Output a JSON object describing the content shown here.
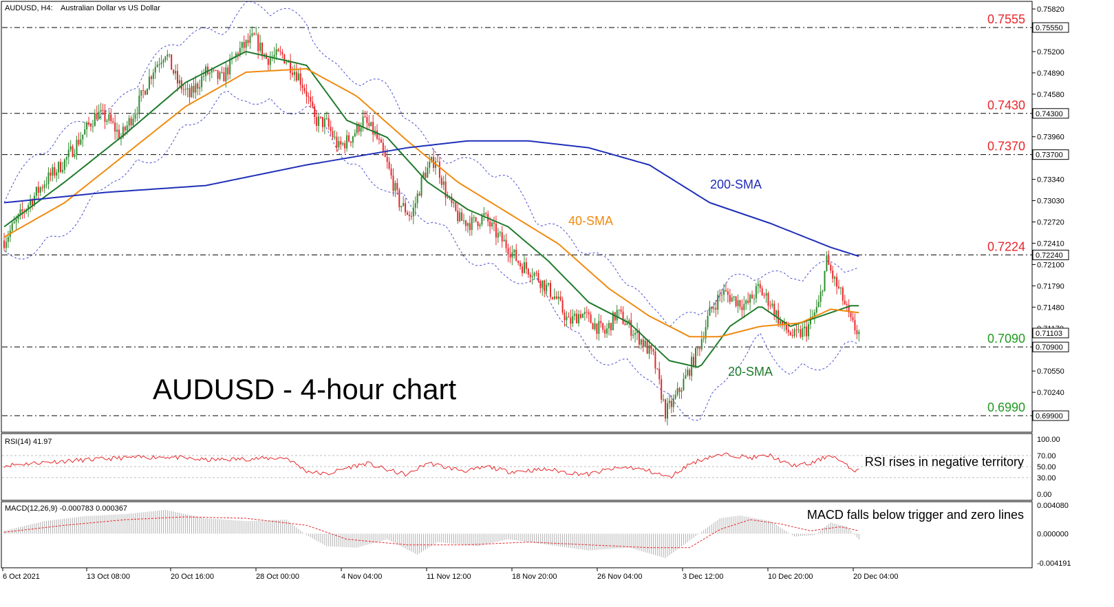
{
  "window": {
    "header_symbol": "AUDUSD, H4:",
    "header_desc": "Australian Dollar vs US Dollar",
    "big_title": "AUDUSD - 4-hour chart"
  },
  "colors": {
    "bull": "#2e8b2e",
    "bear": "#e8262a",
    "sma20": "#1e7a2a",
    "sma40": "#f08a10",
    "sma200": "#1f2fb8",
    "bands": "#4a4fd0",
    "level_red": "#e8262a",
    "level_green": "#1e9a1e",
    "rsi": "#e8262a",
    "macd_hist": "#b0b0b0",
    "macd_signal": "#e8262a"
  },
  "chart_data": [
    {
      "type": "candlestick",
      "title": "AUDUSD, H4:  Australian Dollar vs US Dollar",
      "ylim": [
        0.696,
        0.7582
      ],
      "y_ticks": [
        "0.75820",
        "0.75200",
        "0.74890",
        "0.74580",
        "0.73960",
        "0.73340",
        "0.73030",
        "0.72720",
        "0.72410",
        "0.72100",
        "0.71790",
        "0.71480",
        "0.71170",
        "0.70550",
        "0.70240"
      ],
      "x_labels": [
        "6 Oct 2021",
        "13 Oct 08:00",
        "20 Oct 16:00",
        "28 Oct 00:00",
        "4 Nov 04:00",
        "11 Nov 12:00",
        "18 Nov 20:00",
        "26 Nov 04:00",
        "3 Dec 12:00",
        "10 Dec 20:00",
        "20 Dec 04:00"
      ],
      "levels": [
        {
          "value": 0.7555,
          "label": "0.7555",
          "tag": "0.75550",
          "color": "red"
        },
        {
          "value": 0.743,
          "label": "0.7430",
          "tag": "0.74300",
          "color": "red"
        },
        {
          "value": 0.737,
          "label": "0.7370",
          "tag": "0.73700",
          "color": "red"
        },
        {
          "value": 0.7224,
          "label": "0.7224",
          "tag": "0.72240",
          "color": "red"
        },
        {
          "value": 0.709,
          "label": "0.7090",
          "tag": "0.70900",
          "color": "green"
        },
        {
          "value": 0.699,
          "label": "0.6990",
          "tag": "0.69900",
          "color": "green"
        }
      ],
      "last_price_tag": "0.71103",
      "price_path_keypoints": [
        [
          0,
          0.7245
        ],
        [
          10,
          0.729
        ],
        [
          20,
          0.733
        ],
        [
          30,
          0.736
        ],
        [
          38,
          0.7395
        ],
        [
          46,
          0.743
        ],
        [
          52,
          0.742
        ],
        [
          58,
          0.7395
        ],
        [
          66,
          0.744
        ],
        [
          74,
          0.7495
        ],
        [
          80,
          0.752
        ],
        [
          86,
          0.7475
        ],
        [
          92,
          0.7455
        ],
        [
          100,
          0.749
        ],
        [
          108,
          0.748
        ],
        [
          116,
          0.752
        ],
        [
          124,
          0.754
        ],
        [
          130,
          0.751
        ],
        [
          138,
          0.7515
        ],
        [
          146,
          0.7485
        ],
        [
          150,
          0.746
        ],
        [
          154,
          0.742
        ],
        [
          160,
          0.7415
        ],
        [
          166,
          0.738
        ],
        [
          172,
          0.7395
        ],
        [
          178,
          0.742
        ],
        [
          184,
          0.74
        ],
        [
          190,
          0.7355
        ],
        [
          196,
          0.73
        ],
        [
          202,
          0.728
        ],
        [
          208,
          0.734
        ],
        [
          214,
          0.7365
        ],
        [
          220,
          0.7305
        ],
        [
          226,
          0.7275
        ],
        [
          232,
          0.727
        ],
        [
          238,
          0.728
        ],
        [
          244,
          0.7255
        ],
        [
          250,
          0.7235
        ],
        [
          256,
          0.721
        ],
        [
          262,
          0.72
        ],
        [
          268,
          0.718
        ],
        [
          274,
          0.716
        ],
        [
          280,
          0.7125
        ],
        [
          286,
          0.714
        ],
        [
          292,
          0.7125
        ],
        [
          298,
          0.711
        ],
        [
          304,
          0.714
        ],
        [
          310,
          0.712
        ],
        [
          316,
          0.71
        ],
        [
          322,
          0.7075
        ],
        [
          328,
          0.6995
        ],
        [
          332,
          0.701
        ],
        [
          338,
          0.7045
        ],
        [
          344,
          0.7085
        ],
        [
          350,
          0.714
        ],
        [
          356,
          0.717
        ],
        [
          362,
          0.716
        ],
        [
          368,
          0.715
        ],
        [
          374,
          0.7175
        ],
        [
          380,
          0.7155
        ],
        [
          386,
          0.712
        ],
        [
          392,
          0.7105
        ],
        [
          398,
          0.7115
        ],
        [
          404,
          0.715
        ],
        [
          408,
          0.7215
        ],
        [
          412,
          0.7185
        ],
        [
          416,
          0.716
        ],
        [
          420,
          0.7125
        ],
        [
          424,
          0.711
        ]
      ],
      "series": [
        {
          "name": "20-SMA",
          "values": [
            [
              0,
              0.7265
            ],
            [
              30,
              0.733
            ],
            [
              60,
              0.74
            ],
            [
              90,
              0.7475
            ],
            [
              120,
              0.752
            ],
            [
              150,
              0.75
            ],
            [
              170,
              0.742
            ],
            [
              190,
              0.7395
            ],
            [
              210,
              0.733
            ],
            [
              230,
              0.729
            ],
            [
              250,
              0.7265
            ],
            [
              270,
              0.7215
            ],
            [
              290,
              0.7155
            ],
            [
              310,
              0.7125
            ],
            [
              330,
              0.707
            ],
            [
              345,
              0.706
            ],
            [
              360,
              0.712
            ],
            [
              375,
              0.715
            ],
            [
              390,
              0.712
            ],
            [
              405,
              0.7135
            ],
            [
              420,
              0.715
            ],
            [
              424,
              0.715
            ]
          ]
        },
        {
          "name": "40-SMA",
          "values": [
            [
              0,
              0.725
            ],
            [
              30,
              0.73
            ],
            [
              60,
              0.737
            ],
            [
              90,
              0.744
            ],
            [
              120,
              0.749
            ],
            [
              150,
              0.7495
            ],
            [
              175,
              0.7455
            ],
            [
              200,
              0.739
            ],
            [
              225,
              0.733
            ],
            [
              250,
              0.7285
            ],
            [
              275,
              0.724
            ],
            [
              300,
              0.7175
            ],
            [
              320,
              0.7135
            ],
            [
              340,
              0.7105
            ],
            [
              355,
              0.7105
            ],
            [
              375,
              0.712
            ],
            [
              395,
              0.7125
            ],
            [
              410,
              0.7145
            ],
            [
              424,
              0.714
            ]
          ]
        },
        {
          "name": "200-SMA",
          "values": [
            [
              0,
              0.73
            ],
            [
              50,
              0.7315
            ],
            [
              100,
              0.7325
            ],
            [
              150,
              0.7355
            ],
            [
              200,
              0.738
            ],
            [
              230,
              0.739
            ],
            [
              260,
              0.739
            ],
            [
              290,
              0.738
            ],
            [
              320,
              0.7355
            ],
            [
              350,
              0.73
            ],
            [
              380,
              0.727
            ],
            [
              410,
              0.7235
            ],
            [
              424,
              0.7222
            ]
          ]
        }
      ]
    },
    {
      "type": "line",
      "title": "RSI(14) 41.97",
      "ylim": [
        0,
        100
      ],
      "y_ticks": [
        "100.00",
        "70.00",
        "50.00",
        "30.00",
        "0.00"
      ],
      "levels": [
        70,
        50,
        30
      ],
      "values_keypoints": [
        [
          0,
          52
        ],
        [
          20,
          58
        ],
        [
          40,
          62
        ],
        [
          60,
          66
        ],
        [
          80,
          68
        ],
        [
          100,
          62
        ],
        [
          120,
          64
        ],
        [
          140,
          66
        ],
        [
          150,
          42
        ],
        [
          160,
          36
        ],
        [
          170,
          48
        ],
        [
          180,
          56
        ],
        [
          190,
          44
        ],
        [
          200,
          35
        ],
        [
          210,
          57
        ],
        [
          220,
          48
        ],
        [
          230,
          42
        ],
        [
          240,
          50
        ],
        [
          250,
          41
        ],
        [
          260,
          43
        ],
        [
          270,
          45
        ],
        [
          280,
          39
        ],
        [
          290,
          36
        ],
        [
          300,
          45
        ],
        [
          310,
          49
        ],
        [
          320,
          42
        ],
        [
          330,
          30
        ],
        [
          340,
          55
        ],
        [
          350,
          68
        ],
        [
          360,
          72
        ],
        [
          370,
          66
        ],
        [
          380,
          70
        ],
        [
          390,
          52
        ],
        [
          400,
          55
        ],
        [
          410,
          72
        ],
        [
          420,
          46
        ],
        [
          424,
          42
        ]
      ]
    },
    {
      "type": "bar",
      "title": "MACD(12,26,9) -0.000783 0.000367",
      "ylim": [
        -0.004191,
        0.00408
      ],
      "y_ticks": [
        "0.004080",
        "0.000000",
        "-0.004191"
      ],
      "series": [
        {
          "name": "MACD",
          "values_keypoints": [
            [
              0,
              0.0004
            ],
            [
              20,
              0.0018
            ],
            [
              40,
              0.0025
            ],
            [
              60,
              0.0028
            ],
            [
              80,
              0.0034
            ],
            [
              100,
              0.0022
            ],
            [
              120,
              0.0018
            ],
            [
              140,
              0.002
            ],
            [
              150,
              -0.0002
            ],
            [
              160,
              -0.0018
            ],
            [
              175,
              -0.002
            ],
            [
              190,
              -0.0008
            ],
            [
              205,
              -0.003
            ],
            [
              215,
              -0.0012
            ],
            [
              235,
              -0.0018
            ],
            [
              250,
              -0.0008
            ],
            [
              270,
              -0.0016
            ],
            [
              290,
              -0.0024
            ],
            [
              310,
              -0.002
            ],
            [
              328,
              -0.0035
            ],
            [
              340,
              -0.001
            ],
            [
              355,
              0.0022
            ],
            [
              365,
              0.0026
            ],
            [
              380,
              0.0018
            ],
            [
              392,
              -0.0004
            ],
            [
              402,
              -0.0002
            ],
            [
              410,
              0.0016
            ],
            [
              418,
              0.001
            ],
            [
              424,
              -0.0008
            ]
          ]
        },
        {
          "name": "Signal",
          "values_keypoints": [
            [
              0,
              0.0002
            ],
            [
              30,
              0.0012
            ],
            [
              60,
              0.002
            ],
            [
              90,
              0.0024
            ],
            [
              120,
              0.0022
            ],
            [
              150,
              0.0012
            ],
            [
              170,
              -0.0008
            ],
            [
              200,
              -0.0016
            ],
            [
              230,
              -0.0016
            ],
            [
              260,
              -0.0012
            ],
            [
              290,
              -0.0016
            ],
            [
              320,
              -0.002
            ],
            [
              340,
              -0.002
            ],
            [
              355,
              0.0006
            ],
            [
              370,
              0.002
            ],
            [
              385,
              0.0014
            ],
            [
              400,
              0.0004
            ],
            [
              415,
              0.001
            ],
            [
              424,
              0.0004
            ]
          ]
        }
      ]
    }
  ],
  "annotations": {
    "sma200_label": "200-SMA",
    "sma40_label": "40-SMA",
    "sma20_label": "20-SMA",
    "rsi_note": "RSI rises in negative territory",
    "macd_note": "MACD falls below trigger and zero lines"
  }
}
